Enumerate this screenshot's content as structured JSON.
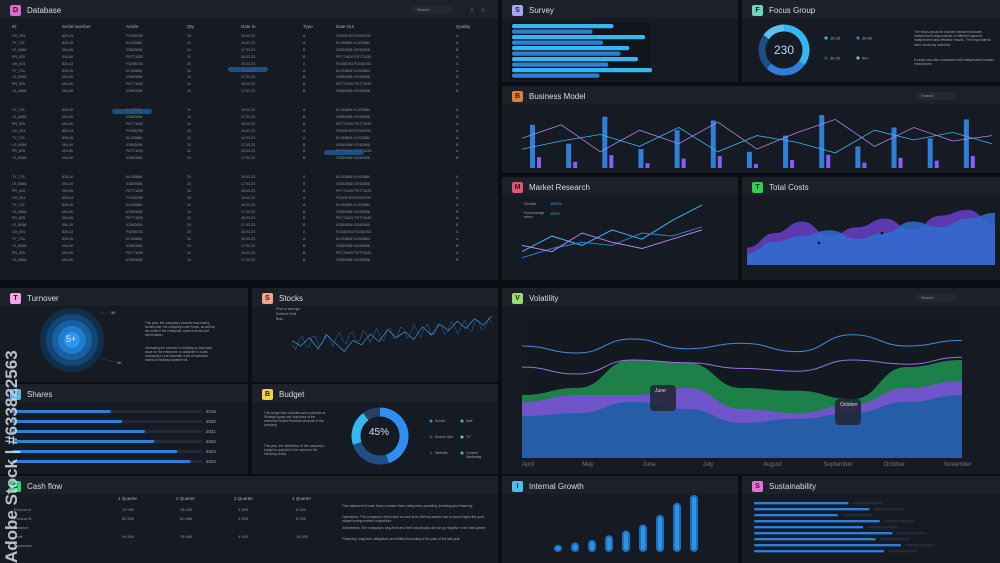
{
  "colors": {
    "bg": "#0b0d12",
    "panel": "#161a22",
    "header": "#1c2029",
    "blue": "#2f7fd8",
    "cyan": "#36b6f0",
    "purple": "#8b5cf6",
    "pink": "#c66fe2",
    "green": "#1ea15a"
  },
  "database": {
    "badge": "D",
    "badge_color": "#e069c9",
    "title": "Database",
    "search": "Search",
    "columns": [
      "ID",
      "Serial Number",
      "Article",
      "Qty",
      "Date In",
      "Type",
      "Date Out",
      "Quality"
    ],
    "groups": [
      [
        [
          "GH_501",
          "825-43",
          "FG006783",
          "25",
          "15.03.23",
          "A",
          "FG006783 FG006783",
          "A"
        ],
        [
          "TY_724",
          "835-40",
          "KL933884",
          "31",
          "19.03.23",
          "A",
          "KL933884 KL933884",
          "A"
        ],
        [
          "LS_8066",
          "094-40",
          "IOD62656",
          "24",
          "17.03.23",
          "B",
          "IOD62656 IOD62656",
          "B"
        ],
        [
          "PR_825",
          "094-80",
          "PDT71630",
          "31",
          "28.03.23",
          "B",
          "PDT71630 PDT71630",
          "A"
        ],
        [
          "GH_501",
          "825-43",
          "FG006783",
          "25",
          "15.03.23",
          "A",
          "FG006783 FG006783",
          "A"
        ],
        [
          "TY_724",
          "835-40",
          "KL933884",
          "31",
          "19.03.23",
          "A",
          "KL933884 KL933884",
          "A"
        ],
        [
          "LS_8066",
          "094-40",
          "IOD62656",
          "24",
          "17.03.23",
          "B",
          "IOD62656 IOD62656",
          "B"
        ],
        [
          "PR_825",
          "094-80",
          "PDT71630",
          "31",
          "28.03.23",
          "B",
          "PDT71630 PDT71630",
          "A"
        ],
        [
          "LS_8066",
          "094-40",
          "IOD62656",
          "24",
          "17.03.23",
          "B",
          "IOD62656 IOD62656",
          "B"
        ]
      ],
      [
        [
          "TY_724",
          "835-40",
          "KL933884",
          "31",
          "19.03.23",
          "A",
          "KL933884 KL933884",
          "A"
        ],
        [
          "LS_8066",
          "094-40",
          "IOD62656",
          "24",
          "17.03.23",
          "B",
          "IOD62656 IOD62656",
          "B"
        ],
        [
          "PR_825",
          "094-80",
          "PDT71630",
          "31",
          "28.03.23",
          "B",
          "PDT71630 PDT71630",
          "A"
        ],
        [
          "GH_501",
          "825-43",
          "FG006783",
          "25",
          "15.03.23",
          "A",
          "FG006783 FG006783",
          "A"
        ],
        [
          "TY_724",
          "835-40",
          "KL933884",
          "31",
          "19.03.23",
          "A",
          "KL933884 KL933884",
          "A"
        ],
        [
          "LS_8066",
          "094-40",
          "IOD62656",
          "24",
          "17.03.23",
          "B",
          "IOD62656 IOD62656",
          "B"
        ],
        [
          "PR_825",
          "094-80",
          "PDT71630",
          "31",
          "28.03.23",
          "B",
          "PDT71630 PDT71630",
          "A"
        ],
        [
          "LS_8066",
          "094-40",
          "IOD62656",
          "24",
          "17.03.23",
          "B",
          "IOD62656 IOD62656",
          "B"
        ]
      ],
      [
        [
          "TY_724",
          "835-40",
          "KL933884",
          "31",
          "19.03.23",
          "A",
          "KL933884 KL933884",
          "A"
        ],
        [
          "LS_8066",
          "094-40",
          "IOD62656",
          "24",
          "17.03.23",
          "B",
          "IOD62656 IOD62656",
          "B"
        ],
        [
          "PR_825",
          "094-80",
          "PDT71630",
          "31",
          "28.03.23",
          "B",
          "PDT71630 PDT71630",
          "A"
        ],
        [
          "GH_501",
          "825-43",
          "FG006783",
          "25",
          "15.03.23",
          "A",
          "FG006783 FG006783",
          "A"
        ],
        [
          "TY_724",
          "835-40",
          "KL933884",
          "31",
          "19.03.23",
          "A",
          "KL933884 KL933884",
          "A"
        ],
        [
          "LS_8066",
          "094-40",
          "IOD62656",
          "24",
          "17.03.23",
          "B",
          "IOD62656 IOD62656",
          "B"
        ],
        [
          "PR_825",
          "094-80",
          "PDT71630",
          "31",
          "28.03.23",
          "B",
          "PDT71630 PDT71630",
          "A"
        ],
        [
          "LS_8066",
          "094-40",
          "IOD62656",
          "24",
          "17.03.23",
          "B",
          "IOD62656 IOD62656",
          "B"
        ],
        [
          "GH_501",
          "825-43",
          "FG006783",
          "25",
          "15.03.23",
          "A",
          "FG006783 FG006783",
          "A"
        ],
        [
          "TY_724",
          "835-40",
          "KL933884",
          "31",
          "19.03.23",
          "A",
          "KL933884 KL933884",
          "A"
        ],
        [
          "LS_8066",
          "094-40",
          "IOD62656",
          "24",
          "17.03.23",
          "B",
          "IOD62656 IOD62656",
          "B"
        ],
        [
          "PR_825",
          "094-80",
          "PDT71630",
          "31",
          "28.03.23",
          "B",
          "PDT71630 PDT71630",
          "A"
        ],
        [
          "LS_8066",
          "094-40",
          "IOD62656",
          "24",
          "17.03.23",
          "B",
          "IOD62656 IOD62656",
          "B"
        ]
      ]
    ]
  },
  "survey": {
    "badge": "S",
    "badge_color": "#a7a7ee",
    "title": "Survey",
    "bars": [
      0.58,
      0.46,
      0.76,
      0.52,
      0.67,
      0.62,
      0.72,
      0.55,
      0.8,
      0.5
    ]
  },
  "focus": {
    "badge": "F",
    "badge_color": "#6fd4c4",
    "title": "Focus Group",
    "value": "230",
    "legend": [
      "18-25",
      "36-50",
      "36-35",
      "50+"
    ],
    "text1": "The focus group for market research includes independent respondents of different ages for independent and effective results. The respondents were randomly selected.",
    "text2": "A study was also conducted with independent market researchers"
  },
  "business": {
    "badge": "B",
    "badge_color": "#e0813a",
    "title": "Business Model",
    "search": "Search",
    "bars": [
      0.8,
      0.45,
      0.95,
      0.35,
      0.7,
      0.88,
      0.3,
      0.6,
      0.98,
      0.4,
      0.75,
      0.55,
      0.9
    ],
    "line1": [
      0.55,
      0.8,
      0.3,
      0.7,
      0.45,
      0.85,
      0.35,
      0.65,
      0.9,
      0.4,
      0.75,
      0.5,
      0.6
    ],
    "line2": [
      0.35,
      0.5,
      0.62,
      0.4,
      0.75,
      0.3,
      0.6,
      0.48,
      0.28,
      0.7,
      0.52,
      0.66,
      0.45
    ]
  },
  "market": {
    "badge": "M",
    "badge_color": "#e4566c",
    "title": "Market Research",
    "growth": "Growth",
    "growth_val": "1000%",
    "fund": "Fund average return",
    "fund_val": "100%",
    "l1": [
      0.2,
      0.45,
      0.3,
      0.55,
      0.4,
      0.7,
      0.95
    ],
    "l2": [
      0.1,
      0.25,
      0.35,
      0.3,
      0.5,
      0.45,
      0.6
    ],
    "l3": [
      0.3,
      0.2,
      0.5,
      0.35,
      0.25,
      0.4,
      0.55
    ]
  },
  "costs": {
    "badge": "T",
    "badge_color": "#2fd14a",
    "title": "Total Costs",
    "a1": [
      0.3,
      0.55,
      0.75,
      0.5,
      0.65,
      0.8,
      0.6,
      0.85,
      0.95,
      0.7
    ],
    "a2": [
      0.2,
      0.4,
      0.5,
      0.6,
      0.45,
      0.55,
      0.75,
      0.65,
      0.8,
      0.9
    ]
  },
  "turnover": {
    "badge": "T",
    "badge_color": "#f0a5e6",
    "title": "Turnover",
    "value": "5+",
    "k1": "3K",
    "k2": "4K",
    "text1": "This year, the company's turnover was mainly formed from the company's own funds, as well as the profit of the enterprise, reserve funds and depreciation",
    "text2": "Increasing the turnover is certainly an important issue for the enterprise. to calculate it, it was necessary to pre-calculate a set of indicators based on financial statements."
  },
  "stocks": {
    "badge": "S",
    "badge_color": "#f2a48d",
    "title": "Stocks",
    "legend": [
      "Price to earnings",
      "Dividend Yield",
      "Beta"
    ],
    "series": [
      0.5,
      0.4,
      0.55,
      0.35,
      0.6,
      0.45,
      0.3,
      0.5,
      0.42,
      0.62,
      0.48,
      0.7,
      0.55,
      0.66,
      0.52,
      0.75,
      0.6,
      0.8,
      0.68,
      0.85,
      0.72,
      0.9,
      0.78,
      0.95
    ]
  },
  "shares": {
    "badge": "S",
    "badge_color": "#5fb8ef",
    "title": "Shares",
    "years": [
      "2019",
      "2020",
      "2021",
      "2022",
      "2023",
      "2024"
    ],
    "values": [
      0.52,
      0.58,
      0.7,
      0.75,
      0.87,
      0.94
    ]
  },
  "budget": {
    "badge": "B",
    "badge_color": "#f3d24b",
    "title": "Budget",
    "value": "45%",
    "text1": "This budget also includes such concepts as Strategic goals and objectives of the enterprise Model Financial structure of the company",
    "text2": "This year, the distribution of the company's budget is projected to be spent on the following needs",
    "legend": [
      "Social",
      "Mail",
      "Search Ads",
      "TV",
      "Website",
      "Content Marketing"
    ]
  },
  "cashflow": {
    "badge": "C",
    "badge_color": "#38d27c",
    "title": "Cash flow",
    "quarters": [
      "1 Quarter",
      "2 Quarter",
      "3 Quarter",
      "4 Quarter"
    ],
    "rows": [
      [
        "Product A",
        "12 000",
        "16 000",
        "2 000",
        "8 000"
      ],
      [
        "Product B",
        "82 500",
        "60 666",
        "2 000",
        "8 000"
      ],
      [
        "Balance",
        "",
        "",
        "",
        ""
      ],
      [
        "Total",
        "94 500",
        "76 666",
        "4 000",
        "16 000"
      ],
      [
        "Expenses",
        "",
        "",
        "",
        ""
      ]
    ],
    "texts": [
      "This statement of cash flows contains three categories: operating, investing and financing.",
      "Operations: The company's net income as well as its internal assets now to record highs this year, outperforming market competitors",
      "Investments: The company's long-term and fixed assets also did not go negative in the last quarter.",
      "Financing: long-term obligations are fulfilled according to the plan of the last year."
    ]
  },
  "volatility": {
    "badge": "V",
    "badge_color": "#9ddc6b",
    "title": "Volatility",
    "search": "Search",
    "months": [
      "April",
      "May",
      "June",
      "July",
      "August",
      "September",
      "October",
      "November"
    ],
    "tip1": "June",
    "tip2": "October",
    "line1": [
      0.35,
      0.4,
      0.3,
      0.32,
      0.36,
      0.38,
      0.3,
      0.33,
      0.28
    ],
    "line2": [
      0.2,
      0.25,
      0.15,
      0.22,
      0.18,
      0.24,
      0.12,
      0.2,
      0.16
    ],
    "green": [
      0.55,
      0.5,
      0.3,
      0.32,
      0.5,
      0.52,
      0.58,
      0.35,
      0.3
    ],
    "purple": [
      0.6,
      0.55,
      0.55,
      0.5,
      0.65,
      0.68,
      0.62,
      0.5,
      0.45
    ],
    "blue": [
      0.7,
      0.68,
      0.6,
      0.65,
      0.75,
      0.72,
      0.68,
      0.6,
      0.55
    ]
  },
  "growth": {
    "badge": "I",
    "badge_color": "#4dbfef",
    "title": "Internal Growth",
    "values": [
      0.12,
      0.16,
      0.2,
      0.28,
      0.36,
      0.46,
      0.62,
      0.82,
      0.95
    ]
  },
  "sustain": {
    "badge": "S",
    "badge_color": "#ea6fd2",
    "title": "Sustainability",
    "values": [
      0.45,
      0.55,
      0.4,
      0.6,
      0.52,
      0.66,
      0.58,
      0.7,
      0.62
    ]
  },
  "watermark": "Adobe Stock | #633822563"
}
